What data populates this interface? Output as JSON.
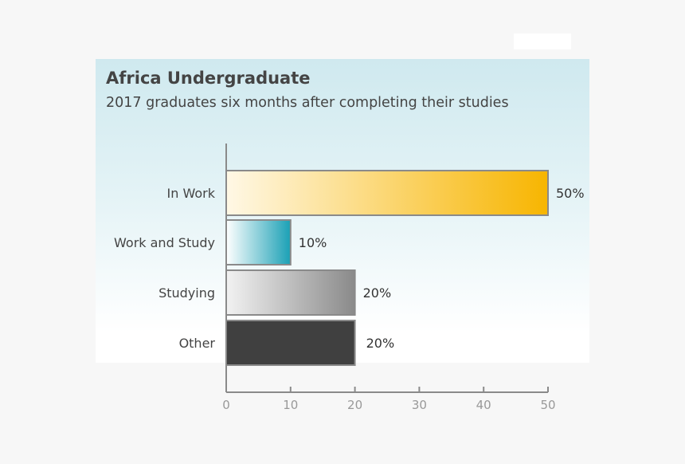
{
  "chart_data": {
    "type": "bar",
    "orientation": "horizontal",
    "title": "Africa Undergraduate",
    "subtitle": "2017 graduates six months after completing their studies",
    "categories": [
      "In Work",
      "Work and Study",
      "Studying",
      "Other"
    ],
    "values": [
      50,
      10,
      20,
      20
    ],
    "value_labels": [
      "50%",
      "10%",
      "20%",
      "20%"
    ],
    "xlim": [
      0,
      50
    ],
    "xticks": [
      "0",
      "10",
      "20",
      "30",
      "40",
      "50"
    ],
    "xlabel": "",
    "ylabel": "",
    "colors": [
      [
        "#fff8e6",
        "#f7b500"
      ],
      [
        "#ffffff",
        "#1aa0b5"
      ],
      [
        "#f2f2f2",
        "#8a8a8a"
      ],
      [
        "#404040",
        "#404040"
      ]
    ]
  }
}
